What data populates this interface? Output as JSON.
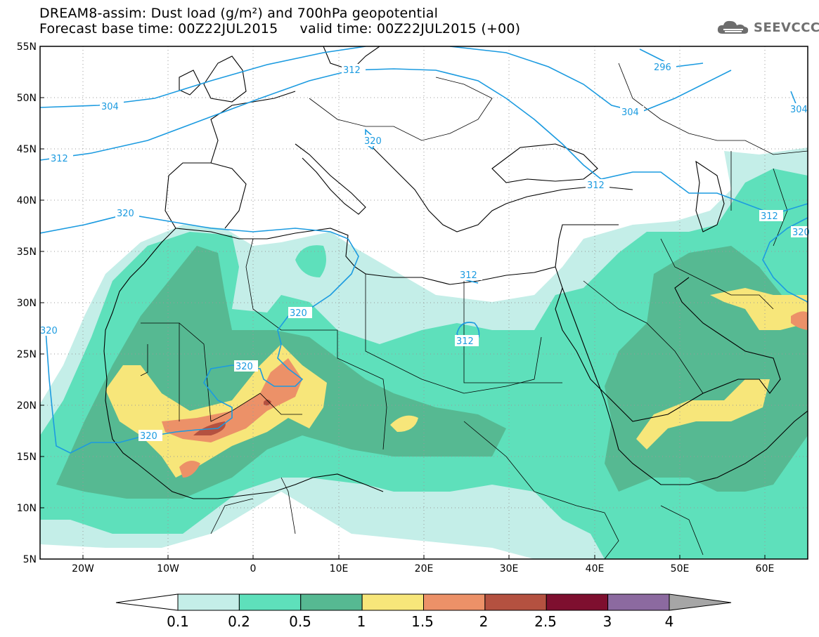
{
  "title": {
    "line1": "DREAM8-assim: Dust load (g/m²) and 700hPa geopotential",
    "line2": "Forecast base time: 00Z22JUL2015     valid time: 00Z22JUL2015 (+00)"
  },
  "logo": {
    "text": "SEEVCCC",
    "icon": "cloud-icon"
  },
  "map": {
    "lon_range": [
      -25,
      65
    ],
    "lat_range": [
      5,
      55
    ],
    "lat_ticks": [
      "55N",
      "50N",
      "45N",
      "40N",
      "35N",
      "30N",
      "25N",
      "20N",
      "15N",
      "10N",
      "5N"
    ],
    "lon_ticks": [
      "20W",
      "10W",
      "0",
      "10E",
      "20E",
      "30E",
      "40E",
      "50E",
      "60E"
    ],
    "grid": "dotted"
  },
  "contours": {
    "color": "#1c9be0",
    "labels": [
      "296",
      "304",
      "304",
      "304",
      "312",
      "312",
      "312",
      "312",
      "312",
      "312",
      "320",
      "320",
      "320",
      "320",
      "320",
      "320",
      "320"
    ]
  },
  "colorbar": {
    "labels": [
      "0.1",
      "0.2",
      "0.5",
      "1",
      "1.5",
      "2",
      "2.5",
      "3",
      "4"
    ],
    "colors": [
      "#c4eee8",
      "#5ee0bb",
      "#56b992",
      "#f7e67a",
      "#ec9168",
      "#b45140",
      "#7e0f2f",
      "#8c6aa0",
      "#a6a6a6"
    ]
  }
}
